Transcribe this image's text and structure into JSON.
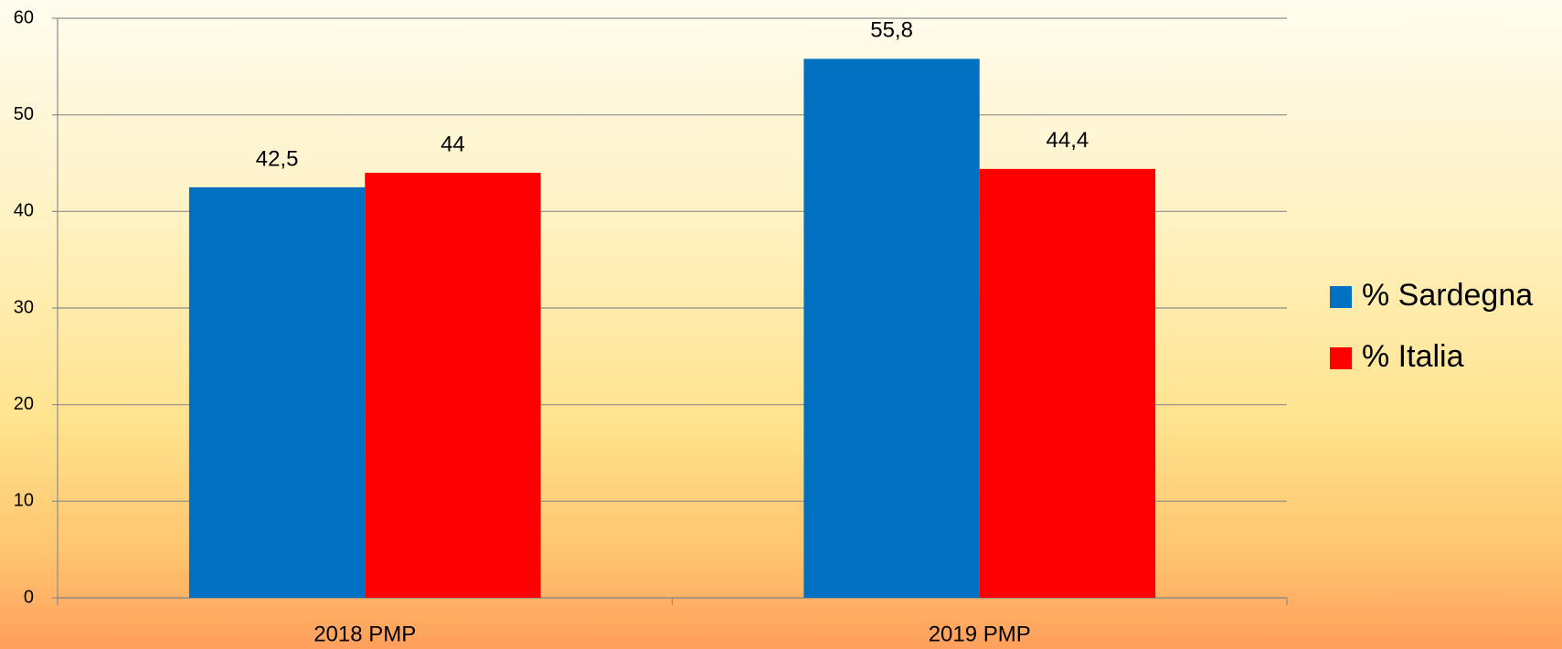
{
  "chart_data": {
    "type": "bar",
    "categories": [
      "2018 PMP",
      "2019 PMP"
    ],
    "series": [
      {
        "name": "% Sardegna",
        "color": "#0070c0",
        "values": [
          42.5,
          55.8
        ],
        "value_labels": [
          "42,5",
          "55,8"
        ]
      },
      {
        "name": "% Italia",
        "color": "#ff0000",
        "values": [
          44,
          44.4
        ],
        "value_labels": [
          "44",
          "44,4"
        ]
      }
    ],
    "ylim": [
      0,
      60
    ],
    "yticks": [
      0,
      10,
      20,
      30,
      40,
      50,
      60
    ],
    "grid": true,
    "legend": "right"
  }
}
